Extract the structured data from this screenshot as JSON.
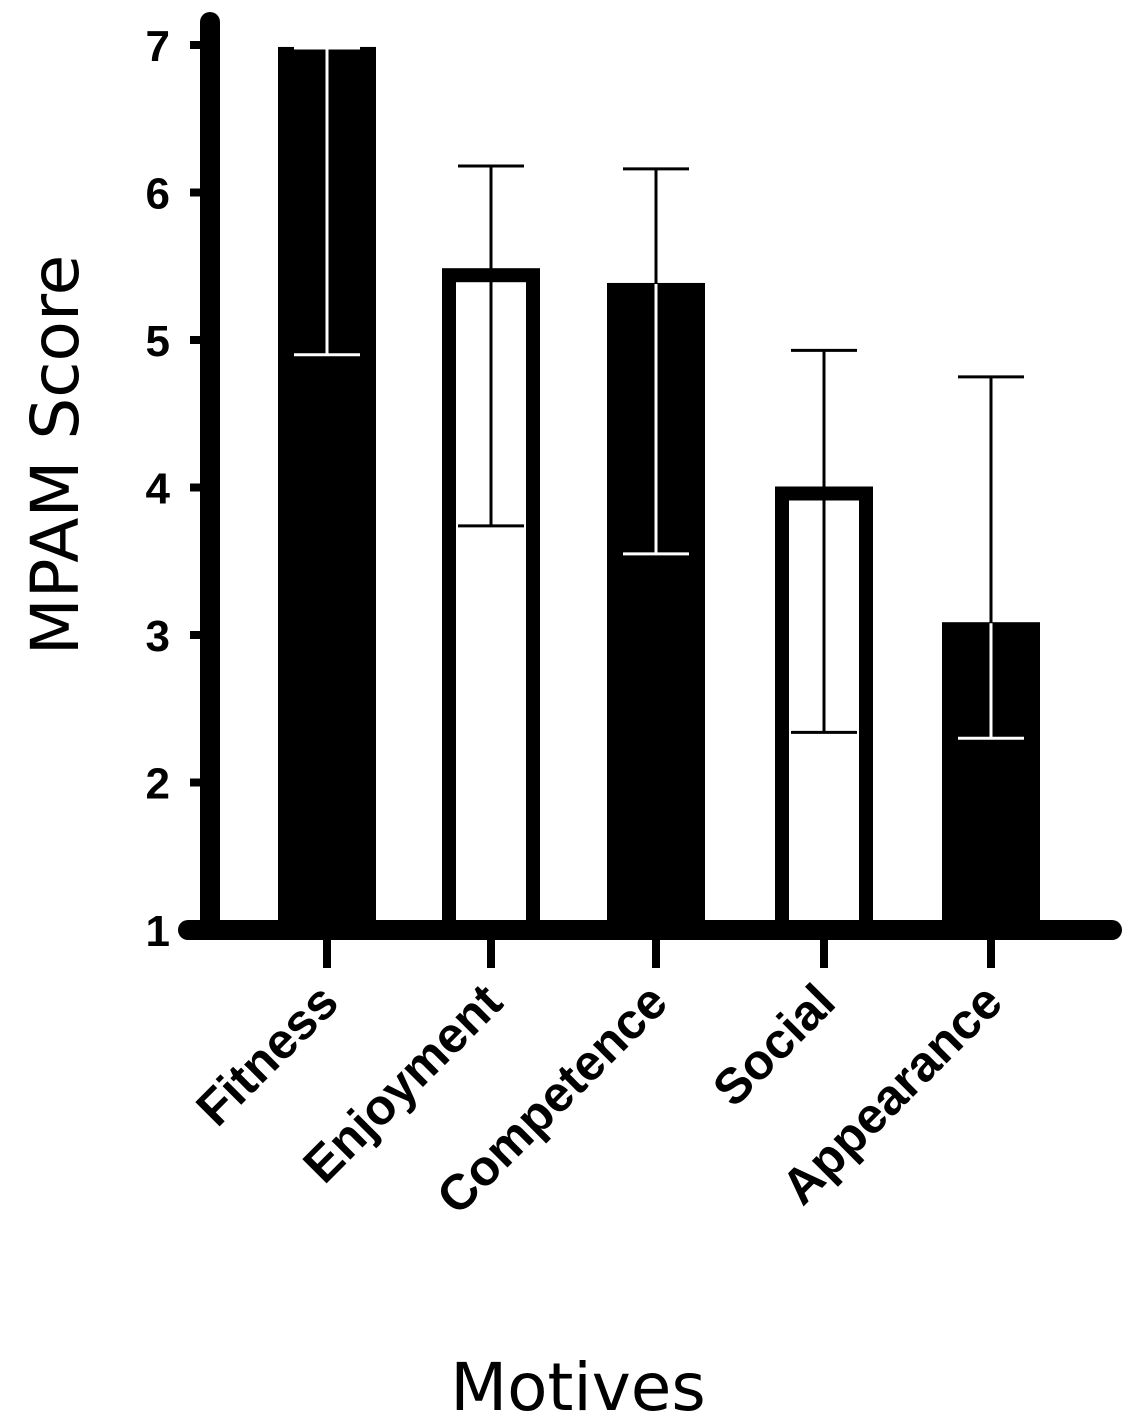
{
  "chart_data": {
    "type": "bar",
    "title": "",
    "xlabel": "Motives",
    "ylabel": "MPAM Score",
    "ylim": [
      1,
      7
    ],
    "yticks": [
      1,
      2,
      3,
      4,
      5,
      6,
      7
    ],
    "categories": [
      "Fitness",
      "Enjoyment",
      "Competence",
      "Social",
      "Appearance"
    ],
    "values": [
      6.98,
      5.48,
      5.38,
      4.0,
      3.08
    ],
    "error_upper": [
      6.98,
      6.18,
      6.16,
      4.93,
      4.75
    ],
    "error_lower": [
      4.9,
      3.74,
      3.55,
      2.34,
      2.3
    ],
    "fills": [
      "filled",
      "open",
      "filled",
      "open",
      "filled"
    ],
    "grid": false,
    "legend": "none"
  }
}
